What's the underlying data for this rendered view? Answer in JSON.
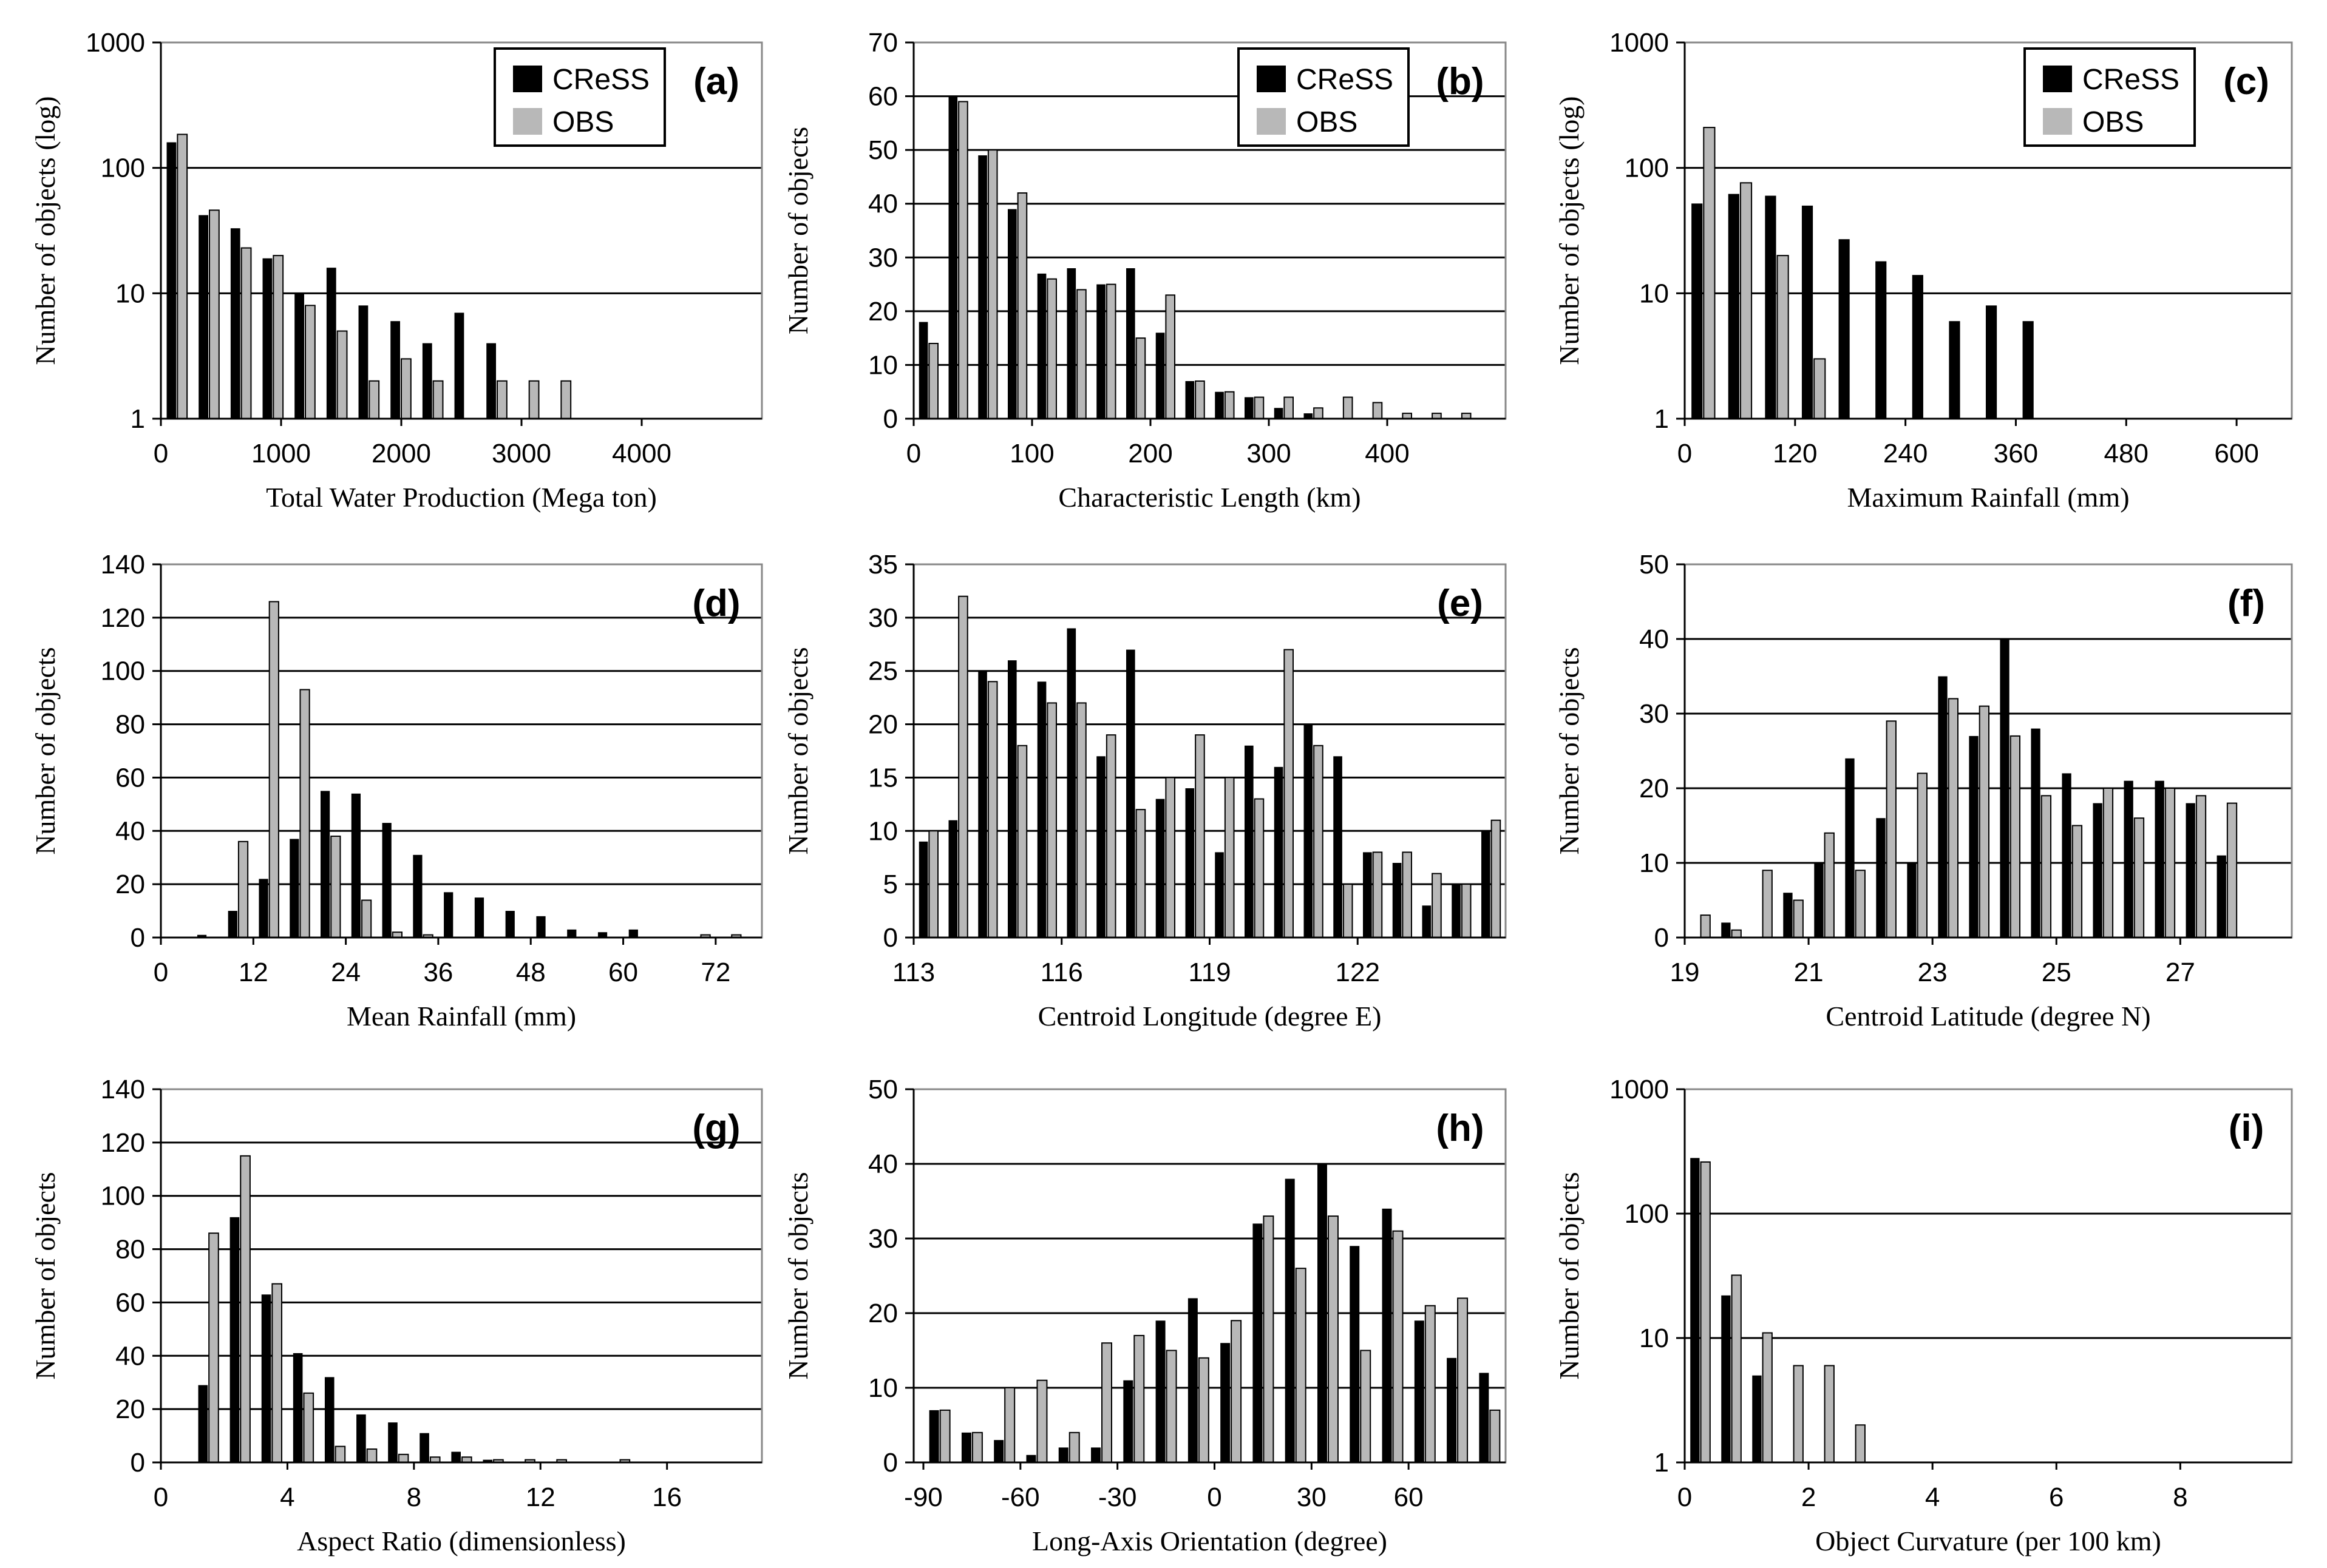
{
  "legend": {
    "model": "CReSS",
    "obs": "OBS"
  },
  "colors": {
    "model": "#000000",
    "obs": "#b8b8b8",
    "grid": "#000000"
  },
  "chart_data": [
    {
      "id": "a",
      "panel_label": "(a)",
      "type": "bar",
      "log": true,
      "xlabel": "Total Water Production (Mega ton)",
      "ylabel": "Number of objects (log)",
      "xlim": [
        0,
        5000
      ],
      "ylim": [
        1,
        1000
      ],
      "xticks": [
        0,
        1000,
        2000,
        3000,
        4000
      ],
      "yticks": [
        1,
        10,
        100,
        1000
      ],
      "ytick_labels": [
        "1",
        "10",
        "100",
        "1000"
      ],
      "grid": [
        10,
        100
      ],
      "legend": true,
      "bin_width": 266,
      "x": [
        133,
        399,
        665,
        931,
        1197,
        1463,
        1729,
        1995,
        2261,
        2527,
        2793,
        3059,
        3325
      ],
      "series": [
        {
          "name": "CReSS",
          "values": [
            160,
            42,
            33,
            19,
            10,
            16,
            8,
            6,
            4,
            7,
            4,
            0,
            0
          ]
        },
        {
          "name": "OBS",
          "values": [
            185,
            46,
            23,
            20,
            8,
            5,
            2,
            3,
            2,
            0,
            2,
            2,
            2
          ]
        }
      ]
    },
    {
      "id": "b",
      "panel_label": "(b)",
      "type": "bar",
      "log": false,
      "xlabel": "Characteristic Length (km)",
      "ylabel": "Number of objects",
      "xlim": [
        0,
        500
      ],
      "ylim": [
        0,
        70
      ],
      "xticks": [
        0,
        100,
        200,
        300,
        400
      ],
      "yticks": [
        0,
        10,
        20,
        30,
        40,
        50,
        60,
        70
      ],
      "grid": [
        10,
        20,
        30,
        40,
        50,
        60
      ],
      "legend": true,
      "bin_width": 25,
      "x": [
        12.5,
        37.5,
        62.5,
        87.5,
        112.5,
        137.5,
        162.5,
        187.5,
        212.5,
        237.5,
        262.5,
        287.5,
        312.5,
        337.5,
        362.5,
        387.5,
        412.5,
        437.5,
        462.5
      ],
      "series": [
        {
          "name": "CReSS",
          "values": [
            18,
            60,
            49,
            39,
            27,
            28,
            25,
            28,
            16,
            7,
            5,
            4,
            2,
            1,
            0,
            0,
            0,
            0,
            0
          ]
        },
        {
          "name": "OBS",
          "values": [
            14,
            59,
            50,
            42,
            26,
            24,
            25,
            15,
            23,
            7,
            5,
            4,
            4,
            2,
            4,
            3,
            1,
            1,
            1
          ]
        }
      ]
    },
    {
      "id": "c",
      "panel_label": "(c)",
      "type": "bar",
      "log": true,
      "xlabel": "Maximum Rainfall (mm)",
      "ylabel": "Number of objects (log)",
      "xlim": [
        0,
        660
      ],
      "ylim": [
        1,
        1000
      ],
      "xticks": [
        0,
        120,
        240,
        360,
        480,
        600
      ],
      "yticks": [
        1,
        10,
        100,
        1000
      ],
      "ytick_labels": [
        "1",
        "10",
        "100",
        "1000"
      ],
      "grid": [
        10,
        100
      ],
      "legend": true,
      "bin_width": 40,
      "x": [
        20,
        60,
        100,
        140,
        180,
        220,
        260,
        300,
        340,
        380
      ],
      "series": [
        {
          "name": "CReSS",
          "values": [
            52,
            62,
            60,
            50,
            27,
            18,
            14,
            6,
            8,
            6
          ]
        },
        {
          "name": "OBS",
          "values": [
            210,
            76,
            20,
            3,
            0,
            0,
            0,
            0,
            0,
            0
          ]
        }
      ]
    },
    {
      "id": "d",
      "panel_label": "(d)",
      "type": "bar",
      "log": false,
      "xlabel": "Mean Rainfall (mm)",
      "ylabel": "Number of objects",
      "xlim": [
        0,
        78
      ],
      "ylim": [
        0,
        140
      ],
      "xticks": [
        0,
        12,
        24,
        36,
        48,
        60,
        72
      ],
      "yticks": [
        0,
        20,
        40,
        60,
        80,
        100,
        120,
        140
      ],
      "grid": [
        20,
        40,
        60,
        80,
        100,
        120
      ],
      "legend": false,
      "bin_width": 4,
      "x": [
        6,
        10,
        14,
        18,
        22,
        26,
        30,
        34,
        38,
        42,
        46,
        50,
        54,
        58,
        62,
        66,
        70,
        74
      ],
      "series": [
        {
          "name": "CReSS",
          "values": [
            1,
            10,
            22,
            37,
            55,
            54,
            43,
            31,
            17,
            15,
            10,
            8,
            3,
            2,
            3,
            0,
            0,
            0
          ]
        },
        {
          "name": "OBS",
          "values": [
            0,
            36,
            126,
            93,
            38,
            14,
            2,
            1,
            0,
            0,
            0,
            0,
            0,
            0,
            0,
            0,
            1,
            1
          ]
        }
      ]
    },
    {
      "id": "e",
      "panel_label": "(e)",
      "type": "bar",
      "log": false,
      "xlabel": "Centroid Longitude (degree E)",
      "ylabel": "Number of objects",
      "xlim": [
        113,
        125
      ],
      "ylim": [
        0,
        35
      ],
      "xticks": [
        113,
        116,
        119,
        122
      ],
      "yticks": [
        0,
        5,
        10,
        15,
        20,
        25,
        30,
        35
      ],
      "grid": [
        5,
        10,
        15,
        20,
        25,
        30
      ],
      "legend": false,
      "bin_width": 0.6,
      "x": [
        113.3,
        113.9,
        114.5,
        115.1,
        115.7,
        116.3,
        116.9,
        117.5,
        118.1,
        118.7,
        119.3,
        119.9,
        120.5,
        121.1,
        121.7,
        122.3,
        122.9,
        123.5,
        124.1,
        124.7
      ],
      "series": [
        {
          "name": "CReSS",
          "values": [
            9,
            11,
            25,
            26,
            24,
            29,
            17,
            27,
            13,
            14,
            8,
            18,
            16,
            20,
            17,
            8,
            7,
            3,
            5,
            10
          ]
        },
        {
          "name": "OBS",
          "values": [
            10,
            32,
            24,
            18,
            22,
            22,
            19,
            12,
            15,
            19,
            15,
            13,
            27,
            18,
            5,
            8,
            8,
            6,
            5,
            11
          ]
        }
      ]
    },
    {
      "id": "f",
      "panel_label": "(f)",
      "type": "bar",
      "log": false,
      "xlabel": "Centroid Latitude (degree N)",
      "ylabel": "Number of objects",
      "xlim": [
        19,
        28.8
      ],
      "ylim": [
        0,
        50
      ],
      "xticks": [
        19,
        21,
        23,
        25,
        27
      ],
      "yticks": [
        0,
        10,
        20,
        30,
        40,
        50
      ],
      "grid": [
        10,
        20,
        30,
        40
      ],
      "legend": false,
      "bin_width": 0.5,
      "x": [
        19.25,
        19.75,
        20.25,
        20.75,
        21.25,
        21.75,
        22.25,
        22.75,
        23.25,
        23.75,
        24.25,
        24.75,
        25.25,
        25.75,
        26.25,
        26.75,
        27.25,
        27.75
      ],
      "series": [
        {
          "name": "CReSS",
          "values": [
            0,
            2,
            0,
            6,
            10,
            24,
            16,
            10,
            35,
            27,
            40,
            28,
            22,
            18,
            21,
            21,
            18,
            11
          ]
        },
        {
          "name": "OBS",
          "values": [
            3,
            1,
            9,
            5,
            14,
            9,
            29,
            22,
            32,
            31,
            27,
            19,
            15,
            20,
            16,
            20,
            19,
            18
          ]
        }
      ]
    },
    {
      "id": "g",
      "panel_label": "(g)",
      "type": "bar",
      "log": false,
      "xlabel": "Aspect Ratio (dimensionless)",
      "ylabel": "Number of objects",
      "xlim": [
        0,
        19
      ],
      "ylim": [
        0,
        140
      ],
      "xticks": [
        0,
        4,
        8,
        12,
        16
      ],
      "yticks": [
        0,
        20,
        40,
        60,
        80,
        100,
        120,
        140
      ],
      "grid": [
        20,
        40,
        60,
        80,
        100,
        120
      ],
      "legend": false,
      "bin_width": 1,
      "x": [
        1.5,
        2.5,
        3.5,
        4.5,
        5.5,
        6.5,
        7.5,
        8.5,
        9.5,
        10.5,
        11.5,
        12.5,
        13.5,
        14.5
      ],
      "series": [
        {
          "name": "CReSS",
          "values": [
            29,
            92,
            63,
            41,
            32,
            18,
            15,
            11,
            4,
            1,
            0,
            0,
            0,
            0
          ]
        },
        {
          "name": "OBS",
          "values": [
            86,
            115,
            67,
            26,
            6,
            5,
            3,
            2,
            2,
            1,
            1,
            1,
            0,
            1
          ]
        }
      ]
    },
    {
      "id": "h",
      "panel_label": "(h)",
      "type": "bar",
      "log": false,
      "xlabel": "Long-Axis Orientation (degree)",
      "ylabel": "Number of objects",
      "xlim": [
        -93,
        90
      ],
      "ylim": [
        0,
        50
      ],
      "xticks": [
        -90,
        -60,
        -30,
        0,
        30,
        60
      ],
      "yticks": [
        0,
        10,
        20,
        30,
        40,
        50
      ],
      "grid": [
        10,
        20,
        30,
        40
      ],
      "legend": false,
      "bin_width": 10,
      "x": [
        -85,
        -75,
        -65,
        -55,
        -45,
        -35,
        -25,
        -15,
        -5,
        5,
        15,
        25,
        35,
        45,
        55,
        65,
        75,
        85
      ],
      "series": [
        {
          "name": "CReSS",
          "values": [
            7,
            4,
            3,
            1,
            2,
            2,
            11,
            19,
            22,
            16,
            32,
            38,
            40,
            29,
            34,
            19,
            14,
            12
          ]
        },
        {
          "name": "OBS",
          "values": [
            7,
            4,
            10,
            11,
            4,
            16,
            17,
            15,
            14,
            19,
            33,
            26,
            33,
            15,
            31,
            21,
            22,
            7
          ]
        }
      ]
    },
    {
      "id": "i",
      "panel_label": "(i)",
      "type": "bar",
      "log": true,
      "xlabel": "Object Curvature (per 100 km)",
      "ylabel": "Number of objects",
      "xlim": [
        0,
        9.8
      ],
      "ylim": [
        1,
        1000
      ],
      "xticks": [
        0,
        2,
        4,
        6,
        8
      ],
      "yticks": [
        1,
        10,
        100,
        1000
      ],
      "ytick_labels": [
        "1",
        "10",
        "100",
        "1000"
      ],
      "grid": [
        10,
        100
      ],
      "legend": false,
      "bin_width": 0.5,
      "x": [
        0.25,
        0.75,
        1.25,
        1.75,
        2.25,
        2.75
      ],
      "series": [
        {
          "name": "CReSS",
          "values": [
            280,
            22,
            5,
            0,
            0,
            0
          ]
        },
        {
          "name": "OBS",
          "values": [
            260,
            32,
            11,
            6,
            6,
            2
          ]
        }
      ]
    }
  ]
}
